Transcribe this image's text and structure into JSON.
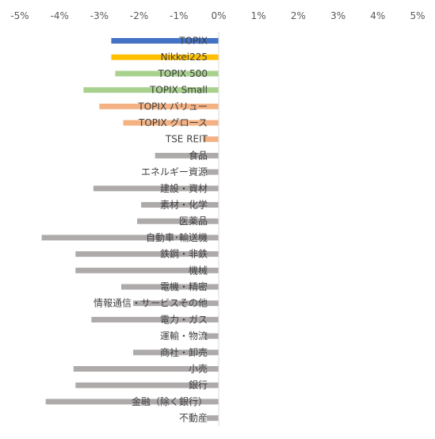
{
  "chart_data": {
    "type": "bar",
    "orientation": "horizontal",
    "xlim": [
      -5,
      5
    ],
    "x_tick_labels": [
      "-5%",
      "-4%",
      "-3%",
      "-2%",
      "-1%",
      "0%",
      "1%",
      "2%",
      "3%",
      "4%",
      "5%"
    ],
    "x_ticks": [
      -5,
      -4,
      -3,
      -2,
      -1,
      0,
      1,
      2,
      3,
      4,
      5
    ],
    "axis_position": "top",
    "grid": false,
    "categories": [
      "TOPIX",
      "Nikkei225",
      "TOPIX 500",
      "TOPIX Small",
      "TOPIX バリュー",
      "TOPIX グロース",
      "TSE REIT",
      "食品",
      "エネルギー資源",
      "建設・資材",
      "素材・化学",
      "医薬品",
      "自動車･輸送機",
      "鉄鋼・非鉄",
      "機械",
      "電機・精密",
      "情報通信・サービスその他",
      "電力・ガス",
      "運輸・物流",
      "商社・卸売",
      "小売",
      "銀行",
      "金融（除く銀行）",
      "不動産"
    ],
    "values": [
      -2.7,
      -2.7,
      -2.6,
      -3.4,
      -3.0,
      -2.4,
      -0.4,
      -1.6,
      -0.3,
      -3.15,
      -1.95,
      -2.05,
      -4.45,
      -3.6,
      -3.6,
      -2.45,
      -2.15,
      -3.2,
      -0.35,
      -2.15,
      -3.65,
      -3.6,
      -4.35,
      -0.3
    ],
    "colors": [
      "#4472c4",
      "#ffc000",
      "#a9d18e",
      "#a9d18e",
      "#f4b183",
      "#f4b183",
      "#f4b183",
      "#aeaaaa",
      "#aeaaaa",
      "#aeaaaa",
      "#aeaaaa",
      "#aeaaaa",
      "#aeaaaa",
      "#aeaaaa",
      "#aeaaaa",
      "#aeaaaa",
      "#aeaaaa",
      "#aeaaaa",
      "#aeaaaa",
      "#aeaaaa",
      "#aeaaaa",
      "#aeaaaa",
      "#aeaaaa",
      "#aeaaaa"
    ]
  }
}
